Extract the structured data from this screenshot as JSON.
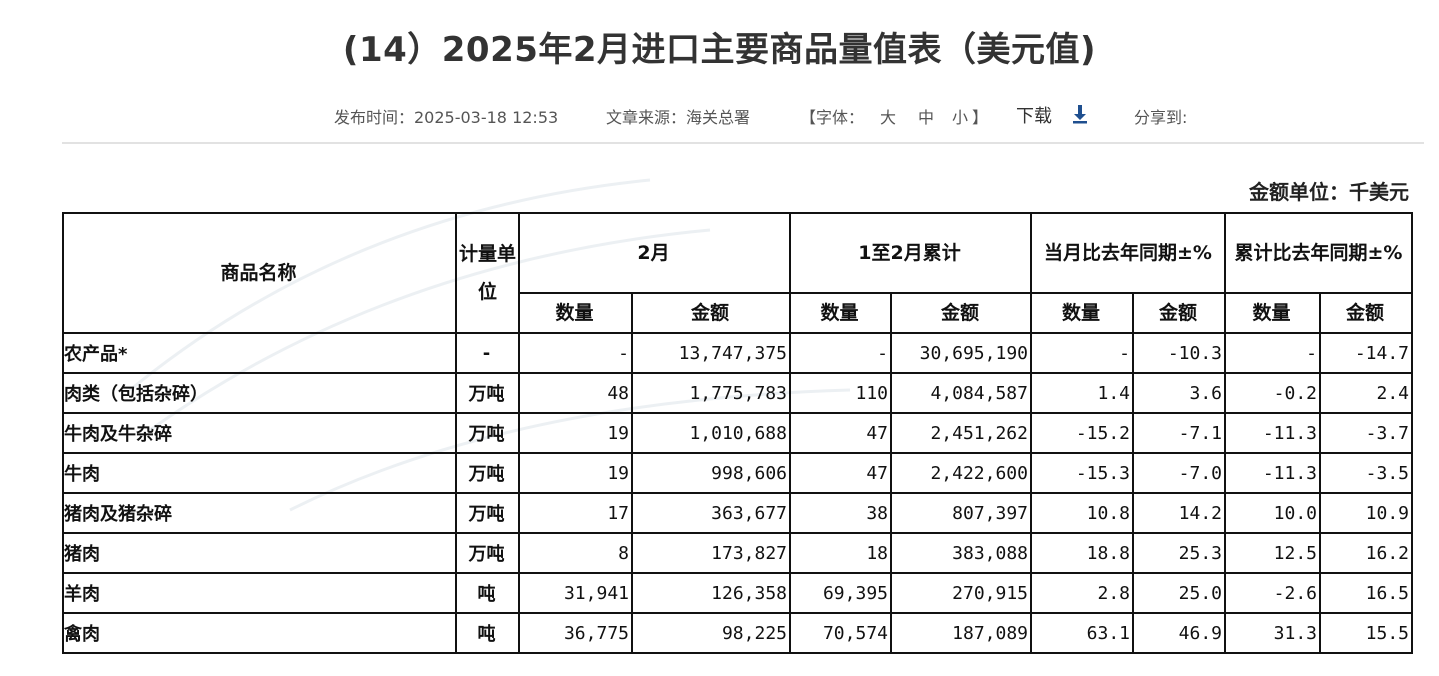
{
  "title": "(14）2025年2月进口主要商品量值表（美元值)",
  "meta": {
    "publish": "发布时间：2025-03-18 12:53",
    "source": "文章来源：海关总署",
    "font_open": "【字体：",
    "font_large": "大",
    "font_medium": "中",
    "font_small": "小",
    "font_close": "】",
    "download": "下载",
    "share": "分享到:"
  },
  "unit_label": "金额单位：千美元",
  "table": {
    "header": {
      "name": "商品名称",
      "unit": "计量单位",
      "feb": "2月",
      "ytd": "1至2月累计",
      "yoy_month": "当月比去年同期±%",
      "yoy_ytd": "累计比去年同期±%",
      "qty": "数量",
      "amount": "金额"
    },
    "rows": [
      {
        "name": "农产品*",
        "indent": 0,
        "unit": "-",
        "feb_qty": "-",
        "feb_amt": "13,747,375",
        "ytd_qty": "-",
        "ytd_amt": "30,695,190",
        "m_qty": "-",
        "m_amt": "-10.3",
        "y_qty": "-",
        "y_amt": "-14.7"
      },
      {
        "name": "肉类（包括杂碎）",
        "indent": 1,
        "unit": "万吨",
        "feb_qty": "48",
        "feb_amt": "1,775,783",
        "ytd_qty": "110",
        "ytd_amt": "4,084,587",
        "m_qty": "1.4",
        "m_amt": "3.6",
        "y_qty": "-0.2",
        "y_amt": "2.4"
      },
      {
        "name": "牛肉及牛杂碎",
        "indent": 2,
        "unit": "万吨",
        "feb_qty": "19",
        "feb_amt": "1,010,688",
        "ytd_qty": "47",
        "ytd_amt": "2,451,262",
        "m_qty": "-15.2",
        "m_amt": "-7.1",
        "y_qty": "-11.3",
        "y_amt": "-3.7"
      },
      {
        "name": "牛肉",
        "indent": 3,
        "unit": "万吨",
        "feb_qty": "19",
        "feb_amt": "998,606",
        "ytd_qty": "47",
        "ytd_amt": "2,422,600",
        "m_qty": "-15.3",
        "m_amt": "-7.0",
        "y_qty": "-11.3",
        "y_amt": "-3.5"
      },
      {
        "name": "猪肉及猪杂碎",
        "indent": 2,
        "unit": "万吨",
        "feb_qty": "17",
        "feb_amt": "363,677",
        "ytd_qty": "38",
        "ytd_amt": "807,397",
        "m_qty": "10.8",
        "m_amt": "14.2",
        "y_qty": "10.0",
        "y_amt": "10.9"
      },
      {
        "name": "猪肉",
        "indent": 3,
        "unit": "万吨",
        "feb_qty": "8",
        "feb_amt": "173,827",
        "ytd_qty": "18",
        "ytd_amt": "383,088",
        "m_qty": "18.8",
        "m_amt": "25.3",
        "y_qty": "12.5",
        "y_amt": "16.2"
      },
      {
        "name": "羊肉",
        "indent": 2,
        "unit": "吨",
        "feb_qty": "31,941",
        "feb_amt": "126,358",
        "ytd_qty": "69,395",
        "ytd_amt": "270,915",
        "m_qty": "2.8",
        "m_amt": "25.0",
        "y_qty": "-2.6",
        "y_amt": "16.5"
      },
      {
        "name": "禽肉",
        "indent": 2,
        "unit": "吨",
        "feb_qty": "36,775",
        "feb_amt": "98,225",
        "ytd_qty": "70,574",
        "ytd_amt": "187,089",
        "m_qty": "63.1",
        "m_amt": "46.9",
        "y_qty": "31.3",
        "y_amt": "15.5"
      }
    ]
  }
}
